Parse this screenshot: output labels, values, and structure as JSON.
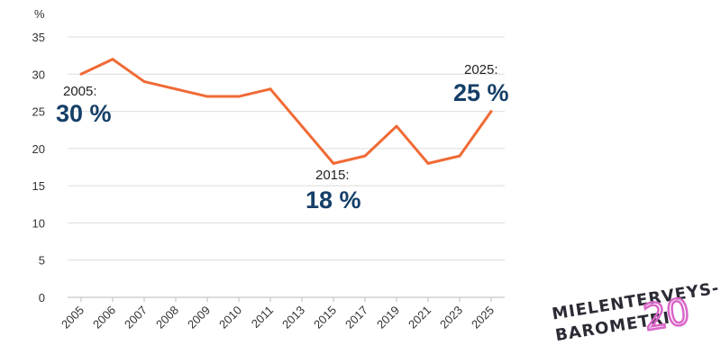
{
  "chart_data": {
    "type": "line",
    "title": "",
    "xlabel": "",
    "ylabel": "%",
    "categories": [
      "2005",
      "2006",
      "2007",
      "2008",
      "2009",
      "2010",
      "2011",
      "2013",
      "2015",
      "2017",
      "2019",
      "2021",
      "2023",
      "2025"
    ],
    "series": [
      {
        "name": "",
        "values": [
          30,
          32,
          29,
          28,
          27,
          27,
          28,
          23,
          18,
          19,
          23,
          18,
          19,
          25
        ],
        "color": "#f06a35"
      }
    ],
    "ylim": [
      0,
      35
    ],
    "yticks": [
      0,
      5,
      10,
      15,
      20,
      25,
      30,
      35
    ],
    "grid": true,
    "annotations": [
      {
        "year_label": "2005:",
        "value_label": "30 %"
      },
      {
        "year_label": "2015:",
        "value_label": "18 %"
      },
      {
        "year_label": "2025:",
        "value_label": "25 %"
      }
    ]
  },
  "logo": {
    "line1": "MIELENTERVEYS-",
    "line2": "BAROMETRI",
    "number": "20",
    "number_color": "#d966c8"
  }
}
